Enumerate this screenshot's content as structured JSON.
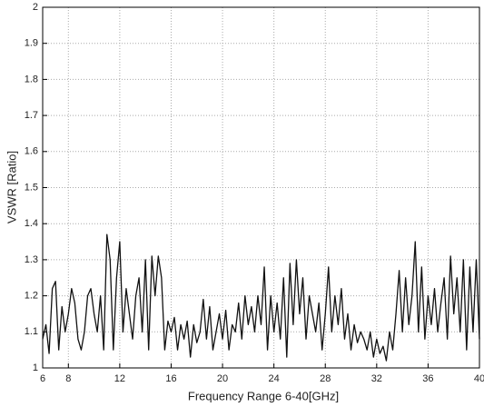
{
  "chart_data": {
    "type": "line",
    "xlabel": "Frequency Range 6-40[GHz]",
    "ylabel": "VSWR [Ratio]",
    "x": [
      6,
      6.25,
      6.5,
      6.75,
      7,
      7.25,
      7.5,
      7.75,
      8,
      8.25,
      8.5,
      8.75,
      9,
      9.25,
      9.5,
      9.75,
      10,
      10.25,
      10.5,
      10.75,
      11,
      11.25,
      11.5,
      11.75,
      12,
      12.25,
      12.5,
      12.75,
      13,
      13.25,
      13.5,
      13.75,
      14,
      14.25,
      14.5,
      14.75,
      15,
      15.25,
      15.5,
      15.75,
      16,
      16.25,
      16.5,
      16.75,
      17,
      17.25,
      17.5,
      17.75,
      18,
      18.25,
      18.5,
      18.75,
      19,
      19.25,
      19.5,
      19.75,
      20,
      20.25,
      20.5,
      20.75,
      21,
      21.25,
      21.5,
      21.75,
      22,
      22.25,
      22.5,
      22.75,
      23,
      23.25,
      23.5,
      23.75,
      24,
      24.25,
      24.5,
      24.75,
      25,
      25.25,
      25.5,
      25.75,
      26,
      26.25,
      26.5,
      26.75,
      27,
      27.25,
      27.5,
      27.75,
      28,
      28.25,
      28.5,
      28.75,
      29,
      29.25,
      29.5,
      29.75,
      30,
      30.25,
      30.5,
      30.75,
      31,
      31.25,
      31.5,
      31.75,
      32,
      32.25,
      32.5,
      32.75,
      33,
      33.25,
      33.5,
      33.75,
      34,
      34.25,
      34.5,
      34.75,
      35,
      35.25,
      35.5,
      35.75,
      36,
      36.25,
      36.5,
      36.75,
      37,
      37.25,
      37.5,
      37.75,
      38,
      38.25,
      38.5,
      38.75,
      39,
      39.25,
      39.5,
      39.75,
      40
    ],
    "series": [
      {
        "color": "#111111",
        "values": [
          1.08,
          1.12,
          1.04,
          1.22,
          1.24,
          1.05,
          1.17,
          1.1,
          1.15,
          1.22,
          1.18,
          1.08,
          1.05,
          1.1,
          1.2,
          1.22,
          1.15,
          1.1,
          1.2,
          1.05,
          1.37,
          1.3,
          1.05,
          1.25,
          1.35,
          1.1,
          1.22,
          1.15,
          1.08,
          1.2,
          1.25,
          1.1,
          1.3,
          1.05,
          1.31,
          1.2,
          1.31,
          1.25,
          1.05,
          1.13,
          1.1,
          1.14,
          1.05,
          1.12,
          1.08,
          1.13,
          1.03,
          1.12,
          1.07,
          1.1,
          1.19,
          1.08,
          1.17,
          1.05,
          1.1,
          1.15,
          1.08,
          1.16,
          1.05,
          1.12,
          1.1,
          1.18,
          1.08,
          1.2,
          1.12,
          1.17,
          1.1,
          1.2,
          1.12,
          1.28,
          1.05,
          1.2,
          1.1,
          1.18,
          1.08,
          1.25,
          1.03,
          1.29,
          1.12,
          1.3,
          1.15,
          1.25,
          1.08,
          1.2,
          1.15,
          1.1,
          1.18,
          1.05,
          1.15,
          1.28,
          1.1,
          1.2,
          1.12,
          1.22,
          1.08,
          1.15,
          1.05,
          1.12,
          1.07,
          1.1,
          1.08,
          1.05,
          1.1,
          1.03,
          1.08,
          1.04,
          1.06,
          1.02,
          1.1,
          1.05,
          1.15,
          1.27,
          1.1,
          1.25,
          1.12,
          1.2,
          1.35,
          1.1,
          1.28,
          1.08,
          1.2,
          1.12,
          1.22,
          1.1,
          1.18,
          1.25,
          1.08,
          1.31,
          1.15,
          1.25,
          1.1,
          1.3,
          1.05,
          1.28,
          1.1,
          1.3,
          1.08
        ]
      }
    ],
    "xlim": [
      6,
      40
    ],
    "ylim": [
      1,
      2
    ],
    "xticks": [
      6,
      8,
      12,
      16,
      20,
      24,
      28,
      32,
      36,
      40
    ],
    "yticks": [
      1,
      1.1,
      1.2,
      1.3,
      1.4,
      1.5,
      1.6,
      1.7,
      1.8,
      1.9,
      2
    ],
    "grid": true
  }
}
